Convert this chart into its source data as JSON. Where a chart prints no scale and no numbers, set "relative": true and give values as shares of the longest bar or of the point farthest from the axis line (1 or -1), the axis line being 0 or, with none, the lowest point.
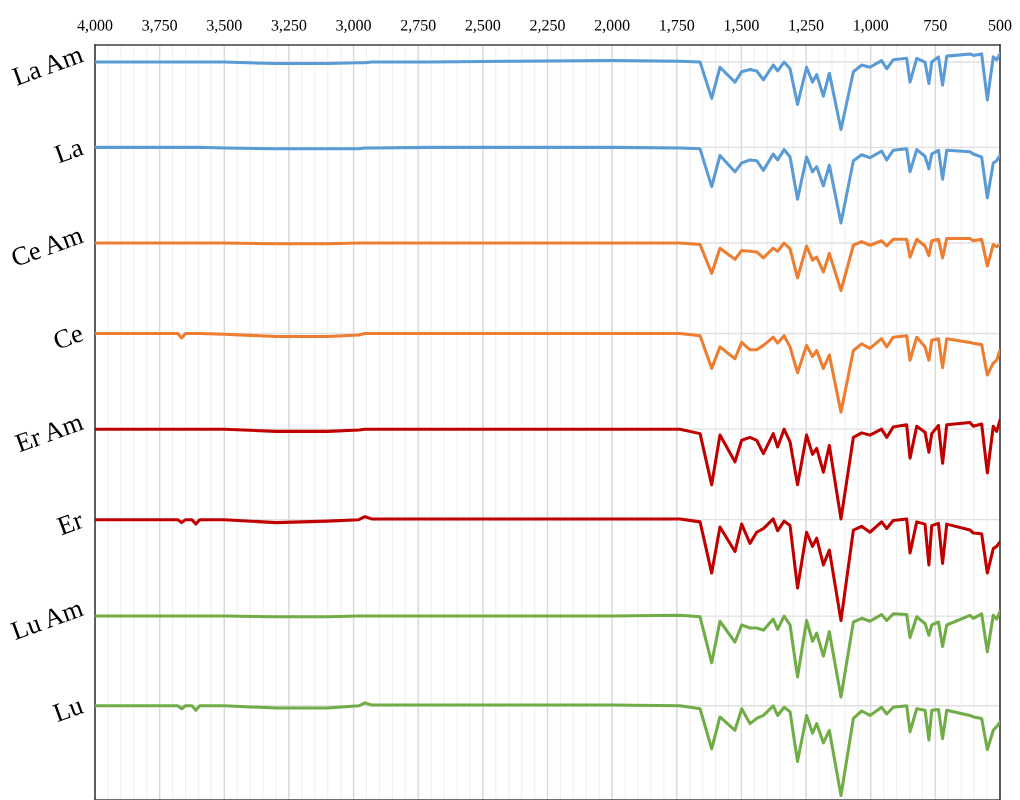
{
  "chart_data": {
    "type": "line",
    "relative": true,
    "grid": true,
    "legend": false,
    "marker": "none",
    "line_style": "solid",
    "xlim": [
      4000,
      500
    ],
    "xticks": [
      {
        "value": 4000,
        "label": "4,000"
      },
      {
        "value": 3750,
        "label": "3,750"
      },
      {
        "value": 3500,
        "label": "3,500"
      },
      {
        "value": 3250,
        "label": "3,250"
      },
      {
        "value": 3000,
        "label": "3,000"
      },
      {
        "value": 2750,
        "label": "2,750"
      },
      {
        "value": 2500,
        "label": "2,500"
      },
      {
        "value": 2250,
        "label": "2,250"
      },
      {
        "value": 2000,
        "label": "2,000"
      },
      {
        "value": 1750,
        "label": "1,750"
      },
      {
        "value": 1500,
        "label": "1,500"
      },
      {
        "value": 1250,
        "label": "1,250"
      },
      {
        "value": 1000,
        "label": "1,000"
      },
      {
        "value": 750,
        "label": "750"
      },
      {
        "value": 500,
        "label": "500"
      }
    ],
    "x": [
      4000,
      3800,
      3680,
      3665,
      3650,
      3625,
      3610,
      3595,
      3500,
      3300,
      3100,
      2980,
      2956,
      2930,
      2700,
      2400,
      2000,
      1738,
      1660,
      1615,
      1583,
      1525,
      1499,
      1467,
      1441,
      1415,
      1377,
      1360,
      1335,
      1312,
      1283,
      1248,
      1225,
      1209,
      1183,
      1160,
      1115,
      1067,
      1035,
      1003,
      958,
      938,
      913,
      861,
      848,
      822,
      790,
      775,
      764,
      738,
      722,
      706,
      616,
      603,
      571,
      549,
      526,
      513,
      500
    ],
    "series": [
      {
        "name": "La Am",
        "color": "#5b9bd5",
        "values": [
          0.989,
          0.989,
          0.989,
          0.989,
          0.989,
          0.989,
          0.989,
          0.989,
          0.989,
          0.987,
          0.987,
          0.988,
          0.988,
          0.989,
          0.989,
          0.99,
          0.991,
          0.99,
          0.989,
          0.94,
          0.982,
          0.962,
          0.976,
          0.979,
          0.977,
          0.965,
          0.985,
          0.977,
          0.989,
          0.98,
          0.932,
          0.982,
          0.962,
          0.972,
          0.943,
          0.974,
          0.898,
          0.976,
          0.985,
          0.982,
          0.991,
          0.98,
          0.992,
          0.994,
          0.962,
          0.994,
          0.989,
          0.96,
          0.989,
          0.996,
          0.958,
          0.997,
          1.0,
          0.998,
          1.0,
          0.938,
          0.996,
          0.992,
          1.0
        ]
      },
      {
        "name": "La",
        "color": "#5b9bd5",
        "values": [
          0.874,
          0.874,
          0.874,
          0.874,
          0.874,
          0.874,
          0.874,
          0.874,
          0.873,
          0.872,
          0.872,
          0.872,
          0.873,
          0.873,
          0.874,
          0.874,
          0.874,
          0.873,
          0.872,
          0.821,
          0.863,
          0.841,
          0.853,
          0.857,
          0.856,
          0.843,
          0.865,
          0.857,
          0.871,
          0.861,
          0.804,
          0.861,
          0.841,
          0.848,
          0.822,
          0.85,
          0.772,
          0.856,
          0.864,
          0.86,
          0.869,
          0.857,
          0.87,
          0.872,
          0.841,
          0.871,
          0.862,
          0.845,
          0.865,
          0.87,
          0.831,
          0.87,
          0.868,
          0.865,
          0.861,
          0.806,
          0.853,
          0.856,
          0.863
        ]
      },
      {
        "name": "Ce Am",
        "color": "#ed7d31",
        "values": [
          0.745,
          0.745,
          0.745,
          0.745,
          0.745,
          0.745,
          0.745,
          0.745,
          0.745,
          0.744,
          0.744,
          0.745,
          0.745,
          0.745,
          0.745,
          0.745,
          0.745,
          0.745,
          0.743,
          0.704,
          0.738,
          0.723,
          0.735,
          0.734,
          0.733,
          0.725,
          0.738,
          0.734,
          0.745,
          0.737,
          0.698,
          0.741,
          0.722,
          0.726,
          0.706,
          0.731,
          0.681,
          0.742,
          0.747,
          0.742,
          0.748,
          0.741,
          0.75,
          0.75,
          0.726,
          0.75,
          0.741,
          0.728,
          0.748,
          0.75,
          0.725,
          0.751,
          0.751,
          0.748,
          0.75,
          0.714,
          0.743,
          0.74,
          0.743
        ]
      },
      {
        "name": "Ce",
        "color": "#ed7d31",
        "values": [
          0.623,
          0.623,
          0.623,
          0.617,
          0.623,
          0.623,
          0.623,
          0.623,
          0.622,
          0.619,
          0.619,
          0.621,
          0.623,
          0.623,
          0.623,
          0.623,
          0.623,
          0.623,
          0.62,
          0.576,
          0.605,
          0.589,
          0.611,
          0.601,
          0.601,
          0.607,
          0.618,
          0.61,
          0.62,
          0.605,
          0.57,
          0.607,
          0.592,
          0.6,
          0.576,
          0.594,
          0.517,
          0.6,
          0.609,
          0.603,
          0.616,
          0.605,
          0.618,
          0.62,
          0.587,
          0.618,
          0.605,
          0.587,
          0.614,
          0.616,
          0.577,
          0.616,
          0.611,
          0.61,
          0.608,
          0.567,
          0.583,
          0.587,
          0.6
        ]
      },
      {
        "name": "Er Am",
        "color": "#c00000",
        "values": [
          0.494,
          0.494,
          0.494,
          0.494,
          0.494,
          0.494,
          0.494,
          0.494,
          0.494,
          0.491,
          0.491,
          0.493,
          0.494,
          0.494,
          0.494,
          0.494,
          0.494,
          0.494,
          0.488,
          0.419,
          0.486,
          0.45,
          0.479,
          0.483,
          0.479,
          0.461,
          0.488,
          0.47,
          0.494,
          0.477,
          0.419,
          0.486,
          0.46,
          0.468,
          0.436,
          0.472,
          0.373,
          0.483,
          0.489,
          0.486,
          0.494,
          0.483,
          0.497,
          0.5,
          0.455,
          0.498,
          0.49,
          0.463,
          0.488,
          0.499,
          0.448,
          0.5,
          0.503,
          0.498,
          0.501,
          0.435,
          0.498,
          0.491,
          0.506
        ]
      },
      {
        "name": "Er",
        "color": "#c00000",
        "values": [
          0.372,
          0.372,
          0.372,
          0.368,
          0.372,
          0.372,
          0.366,
          0.372,
          0.372,
          0.368,
          0.37,
          0.372,
          0.376,
          0.373,
          0.373,
          0.373,
          0.373,
          0.373,
          0.369,
          0.3,
          0.362,
          0.329,
          0.366,
          0.34,
          0.355,
          0.36,
          0.373,
          0.357,
          0.37,
          0.364,
          0.28,
          0.355,
          0.336,
          0.347,
          0.311,
          0.331,
          0.236,
          0.358,
          0.363,
          0.355,
          0.369,
          0.36,
          0.371,
          0.373,
          0.327,
          0.369,
          0.366,
          0.311,
          0.364,
          0.367,
          0.313,
          0.366,
          0.358,
          0.354,
          0.353,
          0.3,
          0.333,
          0.336,
          0.342
        ]
      },
      {
        "name": "Lu Am",
        "color": "#70ad47",
        "values": [
          0.242,
          0.242,
          0.242,
          0.242,
          0.242,
          0.242,
          0.242,
          0.242,
          0.242,
          0.241,
          0.241,
          0.242,
          0.242,
          0.242,
          0.242,
          0.242,
          0.242,
          0.243,
          0.241,
          0.179,
          0.235,
          0.207,
          0.23,
          0.226,
          0.226,
          0.223,
          0.238,
          0.224,
          0.242,
          0.23,
          0.16,
          0.236,
          0.208,
          0.219,
          0.188,
          0.221,
          0.133,
          0.234,
          0.239,
          0.235,
          0.244,
          0.236,
          0.245,
          0.244,
          0.213,
          0.241,
          0.232,
          0.216,
          0.23,
          0.234,
          0.201,
          0.23,
          0.243,
          0.239,
          0.245,
          0.194,
          0.243,
          0.238,
          0.248
        ]
      },
      {
        "name": "Lu",
        "color": "#70ad47",
        "values": [
          0.121,
          0.121,
          0.121,
          0.117,
          0.121,
          0.121,
          0.115,
          0.121,
          0.121,
          0.118,
          0.118,
          0.121,
          0.125,
          0.122,
          0.122,
          0.122,
          0.122,
          0.121,
          0.117,
          0.063,
          0.106,
          0.088,
          0.117,
          0.097,
          0.104,
          0.108,
          0.121,
          0.108,
          0.119,
          0.113,
          0.046,
          0.108,
          0.084,
          0.097,
          0.071,
          0.088,
          0.0,
          0.104,
          0.114,
          0.108,
          0.119,
          0.11,
          0.119,
          0.121,
          0.086,
          0.117,
          0.115,
          0.075,
          0.115,
          0.116,
          0.077,
          0.115,
          0.108,
          0.106,
          0.104,
          0.062,
          0.088,
          0.093,
          0.099
        ]
      }
    ]
  }
}
